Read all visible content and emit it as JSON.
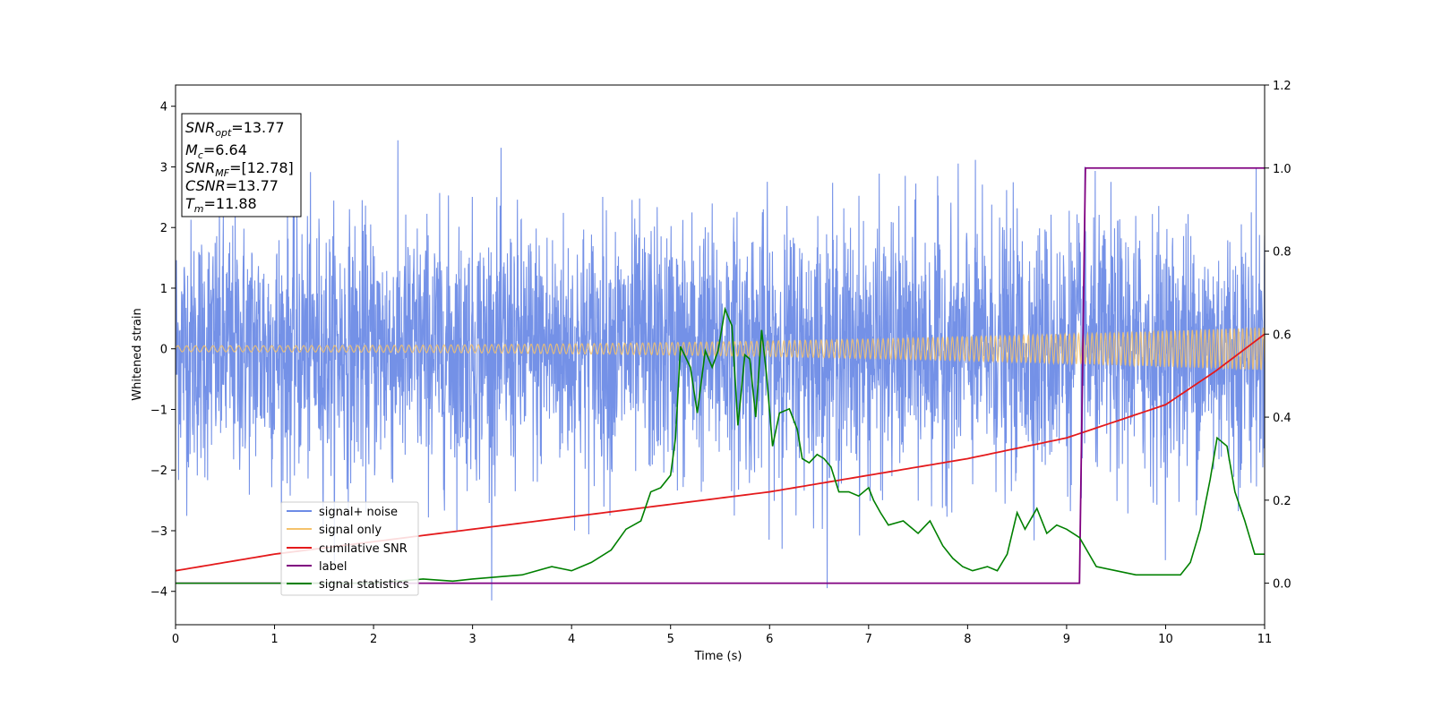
{
  "chart_data": {
    "type": "line",
    "xlabel": "Time (s)",
    "ylabel": "Whitened strain",
    "xlim": [
      0,
      11
    ],
    "ylim": [
      -4.55,
      4.35
    ],
    "y2lim": [
      -0.1,
      1.2
    ],
    "grid": false,
    "x_ticks": [
      "0",
      "1",
      "2",
      "3",
      "4",
      "5",
      "6",
      "7",
      "8",
      "9",
      "10",
      "11"
    ],
    "y_ticks": [
      "4",
      "3",
      "2",
      "1",
      "0",
      "−1",
      "−2",
      "−3",
      "−4"
    ],
    "y2_ticks": [
      "1.2",
      "1.0",
      "0.8",
      "0.6",
      "0.4",
      "0.2",
      "0.0"
    ],
    "legend_position": "lower-left",
    "info_box": {
      "snr_opt": {
        "base": "SNR",
        "sub": "opt",
        "value": "=13.77"
      },
      "mc": {
        "base": "M",
        "sub": "c",
        "value": "=6.64"
      },
      "snr_mf": {
        "base": "SNR",
        "sub": "MF",
        "value": "=[12.78]"
      },
      "csnr": {
        "base": "CSNR",
        "value": "=13.77"
      },
      "tm": {
        "base": "T",
        "sub": "m",
        "value": "=11.88"
      }
    },
    "series": [
      {
        "name": "signal+ noise",
        "color": "#6d8be6",
        "axis": "left",
        "description_note": "dense noise, amplitude ~ ±2.5 with spikes to ±4"
      },
      {
        "name": "signal only",
        "color": "#f5c26b",
        "axis": "left",
        "amplitude_start": 0.05,
        "amplitude_end": 0.35
      },
      {
        "name": "cumilative SNR",
        "color": "#e41a1c",
        "axis": "right",
        "x": [
          0,
          1,
          2,
          3,
          4,
          5,
          6,
          7,
          8,
          9,
          10,
          10.5,
          11
        ],
        "y": [
          0.03,
          0.07,
          0.1,
          0.13,
          0.16,
          0.19,
          0.22,
          0.26,
          0.3,
          0.35,
          0.43,
          0.51,
          0.6
        ]
      },
      {
        "name": "label",
        "color": "#800080",
        "axis": "right",
        "x": [
          0,
          9.13,
          9.19,
          11
        ],
        "y": [
          0,
          0,
          1,
          1
        ]
      },
      {
        "name": "signal statistics",
        "color": "#008000",
        "axis": "right",
        "x": [
          0,
          2.0,
          2.5,
          2.8,
          3.0,
          3.5,
          3.8,
          4.0,
          4.2,
          4.4,
          4.55,
          4.7,
          4.8,
          4.9,
          5.0,
          5.05,
          5.1,
          5.2,
          5.27,
          5.35,
          5.42,
          5.48,
          5.55,
          5.62,
          5.68,
          5.75,
          5.8,
          5.86,
          5.92,
          5.97,
          6.03,
          6.1,
          6.2,
          6.28,
          6.33,
          6.4,
          6.48,
          6.55,
          6.62,
          6.7,
          6.8,
          6.9,
          7.0,
          7.05,
          7.12,
          7.2,
          7.35,
          7.5,
          7.62,
          7.75,
          7.85,
          7.95,
          8.05,
          8.2,
          8.3,
          8.4,
          8.5,
          8.58,
          8.7,
          8.8,
          8.9,
          9.0,
          9.13,
          9.3,
          9.5,
          9.7,
          9.85,
          10.0,
          10.15,
          10.25,
          10.35,
          10.45,
          10.52,
          10.62,
          10.7,
          10.8,
          10.9,
          11.0
        ],
        "y": [
          0,
          0,
          0.01,
          0.005,
          0.01,
          0.02,
          0.04,
          0.03,
          0.05,
          0.08,
          0.13,
          0.15,
          0.22,
          0.23,
          0.26,
          0.35,
          0.57,
          0.52,
          0.41,
          0.56,
          0.52,
          0.56,
          0.66,
          0.62,
          0.38,
          0.55,
          0.54,
          0.4,
          0.61,
          0.5,
          0.33,
          0.41,
          0.42,
          0.37,
          0.3,
          0.29,
          0.31,
          0.3,
          0.28,
          0.22,
          0.22,
          0.21,
          0.23,
          0.2,
          0.17,
          0.14,
          0.15,
          0.12,
          0.15,
          0.09,
          0.06,
          0.04,
          0.03,
          0.04,
          0.03,
          0.07,
          0.17,
          0.13,
          0.18,
          0.12,
          0.14,
          0.13,
          0.11,
          0.04,
          0.03,
          0.02,
          0.02,
          0.02,
          0.02,
          0.05,
          0.13,
          0.25,
          0.35,
          0.33,
          0.22,
          0.15,
          0.07,
          0.07
        ]
      }
    ]
  }
}
